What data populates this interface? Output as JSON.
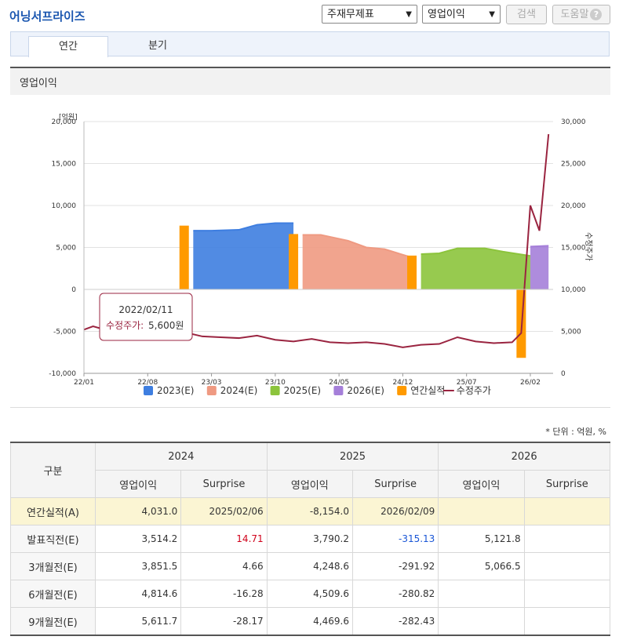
{
  "header": {
    "title": "어닝서프라이즈",
    "select_statement": "주재무제표",
    "select_item": "영업이익",
    "search_label": "검색",
    "help_label": "도움말",
    "help_icon": "?"
  },
  "tabs": [
    "연간",
    "분기"
  ],
  "panel_title": "영업이익",
  "tooltip": {
    "date": "2022/02/11",
    "label": "수정주가:",
    "value": "5,600원"
  },
  "legend": [
    "2023(E)",
    "2024(E)",
    "2025(E)",
    "2026(E)",
    "연간실적",
    "수정주가"
  ],
  "colors": {
    "2023(E)": "#3e7ee0",
    "2024(E)": "#ef9a82",
    "2025(E)": "#8cc43c",
    "2026(E)": "#a57fd9",
    "연간실적": "#ff9a00",
    "수정주가": "#9a2440"
  },
  "chart_data": {
    "type": "area",
    "ylabel": "[억원]",
    "y2label": "수정주가",
    "ylim": [
      -10000,
      20000
    ],
    "y2lim": [
      0,
      30000
    ],
    "yticks": [
      "20,000",
      "15,000",
      "10,000",
      "5,000",
      "0",
      "-5,000",
      "-10,000"
    ],
    "y2ticks": [
      "30,000",
      "25,000",
      "20,000",
      "15,000",
      "10,000",
      "5,000",
      "0"
    ],
    "xticks": [
      "22/01",
      "22/08",
      "23/03",
      "23/10",
      "24/05",
      "24/12",
      "25/07",
      "26/02"
    ],
    "series": [
      {
        "name": "2023(E)",
        "x": [
          "2023-01",
          "2023-03",
          "2023-06",
          "2023-08",
          "2023-10",
          "2023-12"
        ],
        "values": [
          7000,
          7000,
          7100,
          7700,
          7900,
          7900
        ]
      },
      {
        "name": "2024(E)",
        "x": [
          "2024-01",
          "2024-03",
          "2024-06",
          "2024-08",
          "2024-10",
          "2025-01"
        ],
        "values": [
          6500,
          6500,
          5800,
          5000,
          4800,
          3800
        ]
      },
      {
        "name": "2025(E)",
        "x": [
          "2025-02",
          "2025-04",
          "2025-06",
          "2025-09",
          "2025-11",
          "2026-02"
        ],
        "values": [
          4200,
          4300,
          4900,
          4900,
          4500,
          4000
        ]
      },
      {
        "name": "2026(E)",
        "x": [
          "2026-02",
          "2026-04"
        ],
        "values": [
          5100,
          5200
        ]
      },
      {
        "name": "연간실적",
        "x": [
          "2022",
          "2023",
          "2024",
          "2025"
        ],
        "values": [
          7600,
          6600,
          4031,
          -8154
        ]
      },
      {
        "name": "수정주가",
        "x": [
          "2022-01",
          "2022-02",
          "2022-04",
          "2022-06",
          "2022-08",
          "2022-10",
          "2022-12",
          "2023-02",
          "2023-04",
          "2023-06",
          "2023-08",
          "2023-10",
          "2023-12",
          "2024-02",
          "2024-04",
          "2024-06",
          "2024-08",
          "2024-10",
          "2024-12",
          "2025-02",
          "2025-04",
          "2025-06",
          "2025-08",
          "2025-10",
          "2025-12",
          "2026-01",
          "2026-02",
          "2026-03",
          "2026-04"
        ],
        "values": [
          5200,
          5600,
          5000,
          4400,
          4600,
          4700,
          4900,
          4400,
          4300,
          4200,
          4500,
          4000,
          3800,
          4100,
          3700,
          3600,
          3700,
          3500,
          3100,
          3400,
          3500,
          4300,
          3800,
          3600,
          3700,
          4800,
          20000,
          17000,
          28500
        ]
      }
    ]
  },
  "table": {
    "unit": "* 단위 : 억원, %",
    "corner": "구분",
    "years": [
      "2024",
      "2025",
      "2026"
    ],
    "subheaders": [
      "영업이익",
      "Surprise",
      "영업이익",
      "Surprise",
      "영업이익",
      "Surprise"
    ],
    "rows": [
      {
        "label": "연간실적(A)",
        "cells": [
          "4,031.0",
          "2025/02/06",
          "-8,154.0",
          "2026/02/09",
          "",
          ""
        ]
      },
      {
        "label": "발표직전(E)",
        "cells": [
          "3,514.2",
          "14.71",
          "3,790.2",
          "-315.13",
          "5,121.8",
          ""
        ]
      },
      {
        "label": "3개월전(E)",
        "cells": [
          "3,851.5",
          "4.66",
          "4,248.6",
          "-291.92",
          "5,066.5",
          ""
        ]
      },
      {
        "label": "6개월전(E)",
        "cells": [
          "4,814.6",
          "-16.28",
          "4,509.6",
          "-280.82",
          "",
          ""
        ]
      },
      {
        "label": "9개월전(E)",
        "cells": [
          "5,611.7",
          "-28.17",
          "4,469.6",
          "-282.43",
          "",
          ""
        ]
      }
    ]
  }
}
